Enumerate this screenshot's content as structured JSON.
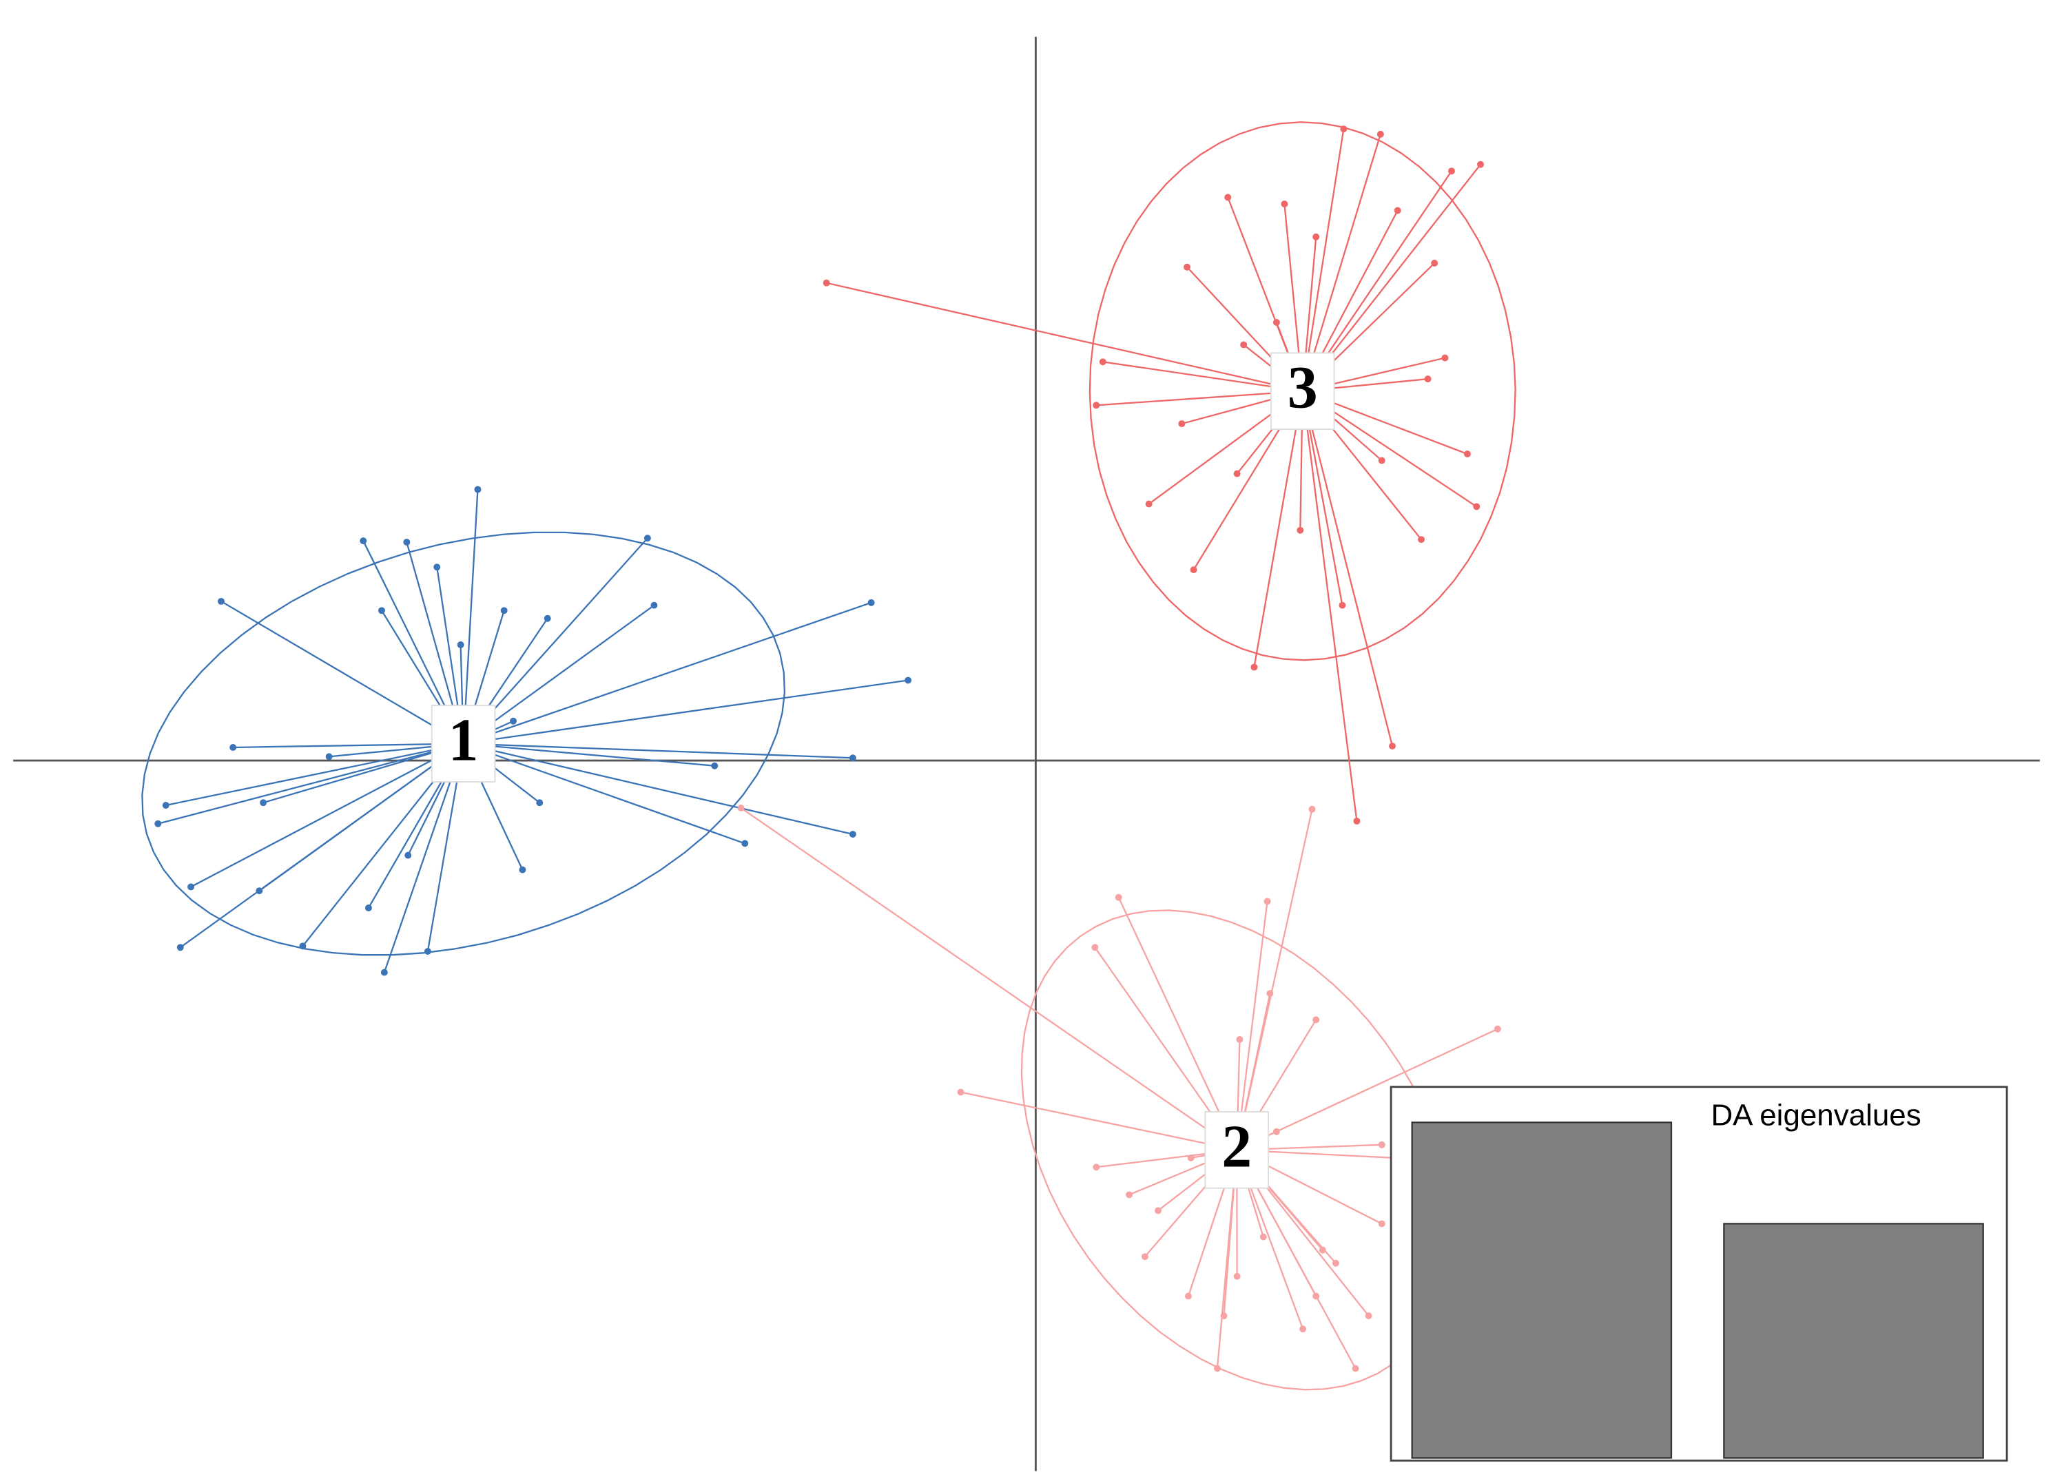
{
  "chart_data": [
    {
      "type": "scatter",
      "xlim": [
        -7.77,
        7.63
      ],
      "ylim": [
        -5.4,
        5.5
      ],
      "series": [
        {
          "name": "1",
          "color": "#3b74b6",
          "x": [
            -4.24,
            -2.95,
            -5.11,
            -4.78,
            -4.55,
            -6.19,
            -2.9,
            -1.25,
            -0.97,
            -6.1,
            -1.39,
            -2.44,
            -6.61,
            -6.67,
            -1.39,
            -2.21,
            -3.9,
            -6.42,
            -5.9,
            -6.5,
            -5.57,
            -4.95,
            -4.62,
            -3.71,
            -4.04,
            -4.97,
            -3.97,
            -5.37,
            -5.87,
            -5.07,
            -4.77,
            -4.37,
            -3.77
          ],
          "values": [
            2.06,
            1.69,
            1.67,
            1.66,
            1.47,
            1.21,
            1.18,
            1.2,
            0.61,
            0.1,
            0.02,
            -0.04,
            -0.34,
            -0.48,
            -0.56,
            -0.63,
            -0.83,
            -0.96,
            -0.99,
            -1.42,
            -1.41,
            -1.61,
            -1.45,
            1.08,
            1.14,
            1.14,
            0.3,
            0.03,
            -0.32,
            -1.12,
            -0.72,
            0.88,
            -0.32
          ]
        },
        {
          "name": "2",
          "color": "#f7a3a3",
          "x": [
            2.1,
            1.76,
            0.63,
            0.45,
            -0.57,
            3.51,
            1.55,
            2.13,
            -2.24,
            0.46,
            0.71,
            0.83,
            1.16,
            1.38,
            2.13,
            2.53,
            2.43,
            1.78,
            1.18,
            1.73,
            2.18,
            2.63,
            2.73,
            1.43,
            2.03,
            2.28,
            0.93,
            1.53,
            1.83,
            2.63
          ],
          "values": [
            -0.37,
            -1.07,
            -1.04,
            -1.42,
            -2.52,
            -2.04,
            -2.12,
            -1.97,
            -0.36,
            -3.09,
            -3.3,
            -3.77,
            -4.07,
            -4.62,
            -4.07,
            -4.22,
            -4.62,
            -1.77,
            -3.02,
            -3.62,
            -3.72,
            -2.92,
            -3.02,
            -4.22,
            -4.32,
            -3.82,
            -3.42,
            -3.92,
            -2.82,
            -3.52
          ]
        },
        {
          "name": "3",
          "color": "#ee6666",
          "x": [
            2.34,
            2.62,
            3.38,
            3.16,
            1.46,
            1.89,
            1.15,
            2.75,
            0.46,
            0.51,
            1.11,
            0.86,
            1.2,
            1.66,
            2.01,
            3.35,
            3.28,
            3.11,
            2.98,
            2.71,
            2.44,
            -1.59,
            1.58,
            1.83,
            2.63,
            2.93,
            1.53,
            2.13,
            2.33,
            3.03
          ],
          "values": [
            4.8,
            4.76,
            4.53,
            4.48,
            4.28,
            4.23,
            3.75,
            4.18,
            2.7,
            3.03,
            2.56,
            1.95,
            1.45,
            0.71,
            1.75,
            1.93,
            2.33,
            3.06,
            2.9,
            0.11,
            -0.46,
            3.63,
            3.16,
            3.33,
            2.28,
            1.68,
            2.18,
            3.98,
            1.18,
            3.78
          ]
        }
      ]
    },
    {
      "type": "bar",
      "title": "DA eigenvalues",
      "values": [
        2.55,
        1.78
      ],
      "color": "#808080",
      "ylim": [
        0,
        2.8
      ]
    }
  ]
}
